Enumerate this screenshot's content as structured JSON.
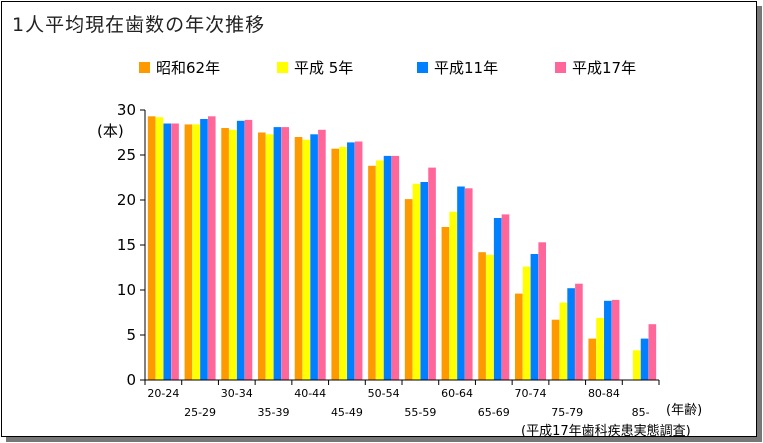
{
  "chart_data": {
    "type": "bar",
    "title": "1人平均現在歯数の年次推移",
    "ylabel": "(本)",
    "xlabel": "(年齢)",
    "source_note": "(平成17年歯科疾患実態調査)",
    "ylim": [
      0,
      30
    ],
    "yticks": [
      0,
      5,
      10,
      15,
      20,
      25,
      30
    ],
    "grid": false,
    "legend_position": "top",
    "categories": [
      "20-24",
      "25-29",
      "30-34",
      "35-39",
      "40-44",
      "45-49",
      "50-54",
      "55-59",
      "60-64",
      "65-69",
      "70-74",
      "75-79",
      "80-84",
      "85-"
    ],
    "series": [
      {
        "name": "昭和62年",
        "color": "#FF9900",
        "values": [
          29.3,
          28.4,
          28.0,
          27.5,
          27.0,
          25.7,
          23.8,
          20.1,
          17.0,
          14.2,
          9.6,
          6.7,
          4.6,
          null
        ]
      },
      {
        "name": "平成 5年",
        "color": "#FFFF00",
        "values": [
          29.2,
          28.4,
          27.8,
          27.3,
          26.7,
          25.9,
          24.4,
          21.8,
          18.7,
          13.9,
          12.6,
          8.6,
          6.9,
          3.3
        ]
      },
      {
        "name": "平成11年",
        "color": "#0080FF",
        "values": [
          28.5,
          29.0,
          28.8,
          28.1,
          27.3,
          26.4,
          24.9,
          22.0,
          21.5,
          18.0,
          14.0,
          10.2,
          8.8,
          4.6
        ]
      },
      {
        "name": "平成17年",
        "color": "#FF6699",
        "values": [
          28.5,
          29.3,
          28.9,
          28.1,
          27.8,
          26.5,
          24.9,
          23.6,
          21.3,
          18.4,
          15.3,
          10.7,
          8.9,
          6.2
        ]
      }
    ]
  }
}
